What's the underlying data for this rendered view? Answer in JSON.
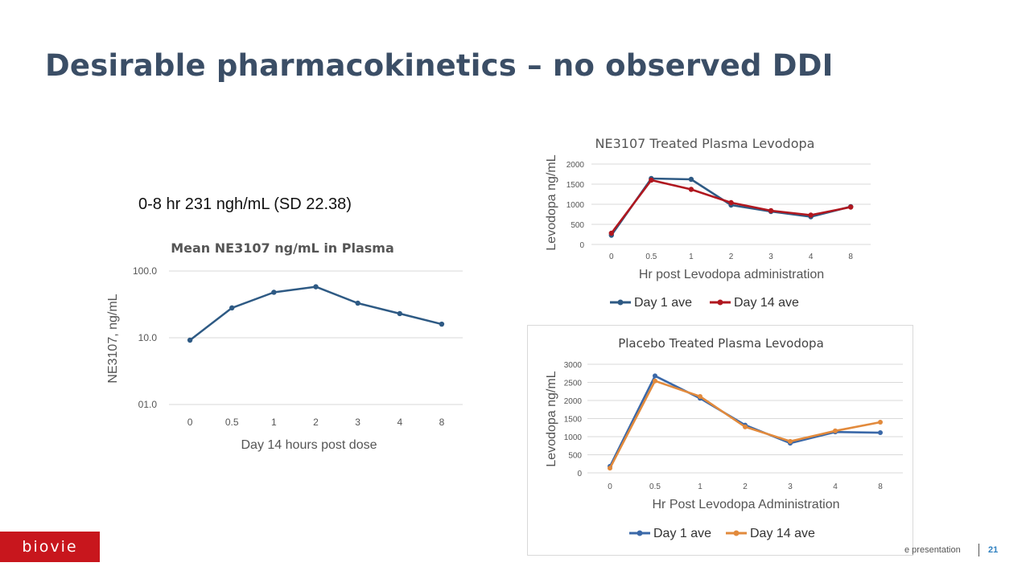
{
  "slide": {
    "title": "Desirable pharmacokinetics – no observed DDI",
    "auc_text": "0-8 hr 231 ngh/mL (SD 22.38)",
    "footer_text": "e presentation",
    "page_number": "21",
    "logo_text": "biovie",
    "colors": {
      "title": "#3b4e66",
      "logo_bg": "#c8161d",
      "page_number": "#2f80c0"
    }
  },
  "chart_data": [
    {
      "type": "line",
      "title": "Mean NE3107 ng/mL in Plasma",
      "xlabel": "Day 14 hours post dose",
      "ylabel": "NE3107, ng/mL",
      "scale": "log",
      "categories": [
        "0",
        "0.5",
        "1",
        "2",
        "3",
        "4",
        "8"
      ],
      "ylim": [
        1,
        100
      ],
      "yticks": [
        {
          "value": 100,
          "label": "100.0"
        },
        {
          "value": 10,
          "label": "10.0"
        },
        {
          "value": 1,
          "label": "01.0"
        }
      ],
      "grid": true,
      "legend": "none",
      "series": [
        {
          "values": [
            9.2,
            28,
            48,
            58,
            33,
            23,
            16
          ],
          "color": "#2e5a84"
        }
      ]
    },
    {
      "type": "line",
      "title": "NE3107 Treated Plasma Levodopa",
      "xlabel": "Hr post Levodopa administration",
      "ylabel": "Levodopa ng/mL",
      "categories": [
        "0",
        "0.5",
        "1",
        "2",
        "3",
        "4",
        "8"
      ],
      "ylim": [
        0,
        2000
      ],
      "yticks": [
        {
          "value": 0,
          "label": "0"
        },
        {
          "value": 500,
          "label": "500"
        },
        {
          "value": 1000,
          "label": "1000"
        },
        {
          "value": 1500,
          "label": "1500"
        },
        {
          "value": 2000,
          "label": "2000"
        }
      ],
      "grid": true,
      "legend": "bottom",
      "series": [
        {
          "name": "Day 1 ave",
          "values": [
            230,
            1640,
            1620,
            980,
            820,
            690,
            940
          ],
          "color": "#2e5a84"
        },
        {
          "name": "Day 14 ave",
          "values": [
            280,
            1600,
            1370,
            1040,
            840,
            730,
            930
          ],
          "color": "#b0171f"
        }
      ]
    },
    {
      "type": "line",
      "title": "Placebo Treated Plasma Levodopa",
      "xlabel": "Hr Post Levodopa Administration",
      "ylabel": "Levodopa ng/mL",
      "categories": [
        "0",
        "0.5",
        "1",
        "2",
        "3",
        "4",
        "8"
      ],
      "ylim": [
        0,
        3000
      ],
      "yticks": [
        {
          "value": 0,
          "label": "0"
        },
        {
          "value": 500,
          "label": "500"
        },
        {
          "value": 1000,
          "label": "1000"
        },
        {
          "value": 1500,
          "label": "1500"
        },
        {
          "value": 2000,
          "label": "2000"
        },
        {
          "value": 2500,
          "label": "2500"
        },
        {
          "value": 3000,
          "label": "3000"
        }
      ],
      "grid": true,
      "legend": "bottom",
      "series": [
        {
          "name": "Day 1 ave",
          "values": [
            180,
            2680,
            2060,
            1320,
            820,
            1130,
            1110
          ],
          "color": "#3a68a8"
        },
        {
          "name": "Day 14 ave",
          "values": [
            130,
            2540,
            2110,
            1270,
            870,
            1160,
            1400
          ],
          "color": "#e28a3c"
        }
      ]
    }
  ]
}
